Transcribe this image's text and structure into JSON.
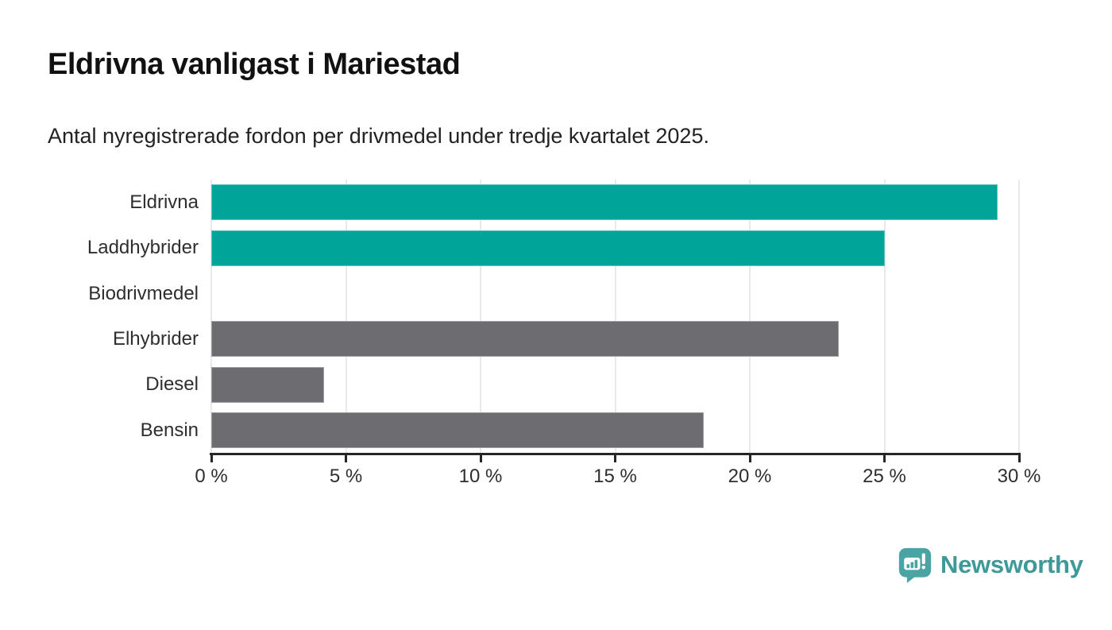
{
  "title": "Eldrivna vanligast i Mariestad",
  "subtitle": "Antal nyregistrerade fordon per drivmedel under tredje kvartalet 2025.",
  "chart_data": {
    "type": "bar",
    "orientation": "horizontal",
    "title": "Eldrivna vanligast i Mariestad",
    "subtitle": "Antal nyregistrerade fordon per drivmedel under tredje kvartalet 2025.",
    "categories": [
      "Eldrivna",
      "Laddhybrider",
      "Biodrivmedel",
      "Elhybrider",
      "Diesel",
      "Bensin"
    ],
    "values": [
      29.2,
      25.0,
      0,
      23.3,
      4.2,
      18.3
    ],
    "unit": "%",
    "xlim": [
      0,
      30
    ],
    "x_ticks": [
      0,
      5,
      10,
      15,
      20,
      25,
      30
    ],
    "x_tick_labels": [
      "0 %",
      "5 %",
      "10 %",
      "15 %",
      "20 %",
      "25 %",
      "30 %"
    ],
    "bar_colors": [
      "#00A499",
      "#00A499",
      "#6C6C71",
      "#6C6C71",
      "#6C6C71",
      "#6C6C71"
    ],
    "highlight_color": "#00A499",
    "default_color": "#6C6C71",
    "grid": true,
    "gridline_color": "#E9E9E9",
    "axis_color": "#262626",
    "legend": "none"
  },
  "footer": {
    "brand": "Newsworthy",
    "brand_color": "#3E9A98",
    "logo_color": "#4BA4A3",
    "logo_icon": "newsworthy-speech-bubble-chart-icon"
  }
}
